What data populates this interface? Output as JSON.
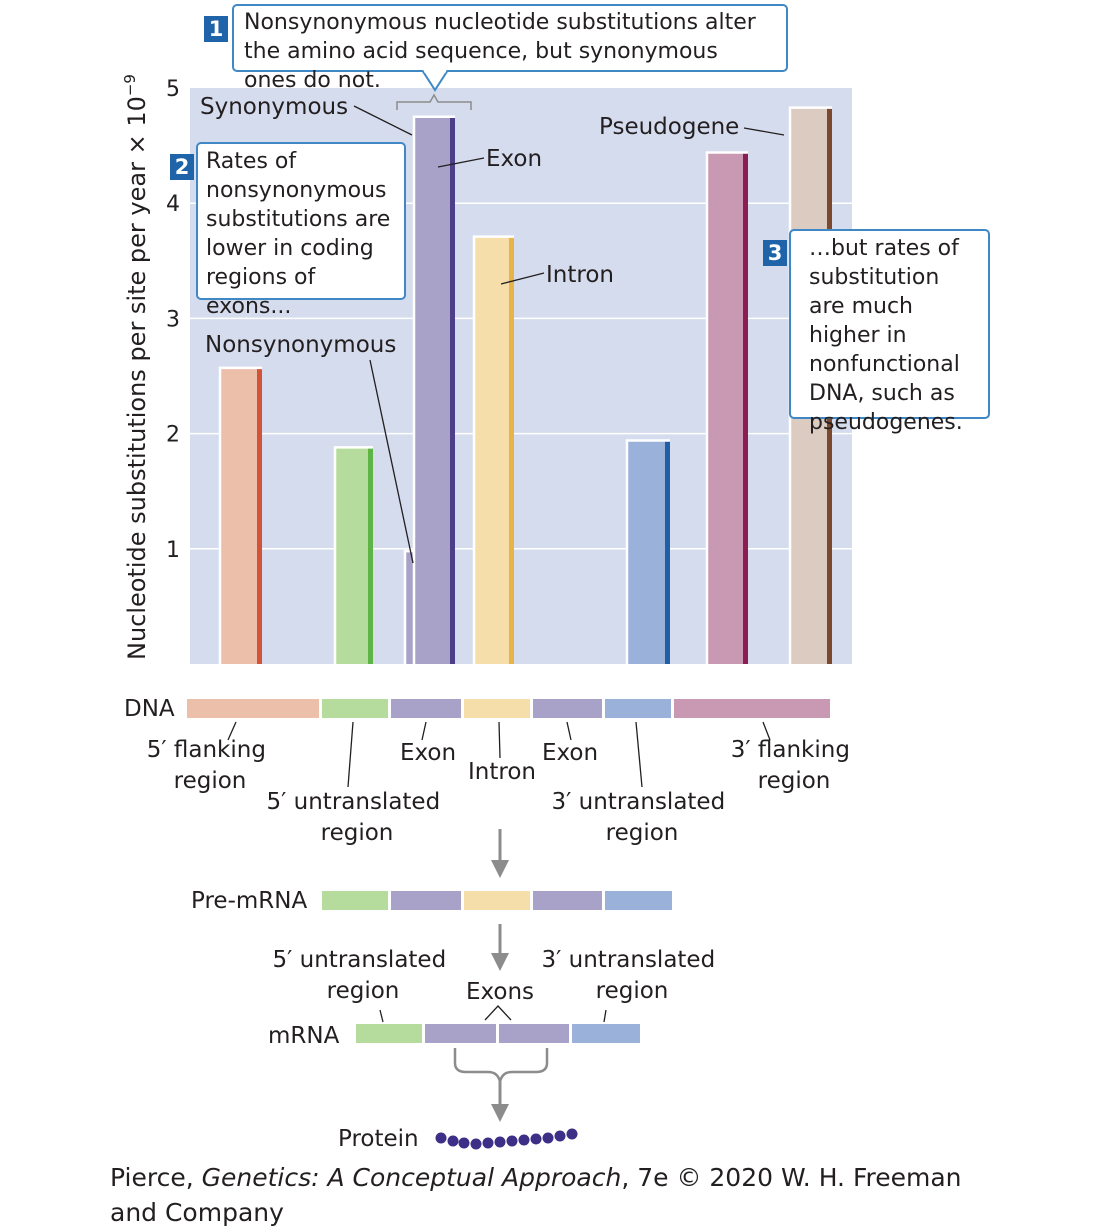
{
  "chart_data": {
    "type": "bar",
    "ylabel": "Nucleotide substitutions per site per year × 10",
    "ylabel_exp": "−9",
    "ylim": [
      0,
      5
    ],
    "yticks": [
      "1",
      "2",
      "3",
      "4",
      "5"
    ],
    "grid": true,
    "bars": [
      {
        "name": "5′ flanking region",
        "value": 2.57,
        "color": "#ebbfa9",
        "edge": "#d2533a"
      },
      {
        "name": "5′ untranslated region",
        "value": 1.88,
        "color": "#b6dc9d",
        "edge": "#5fb446"
      },
      {
        "name": "Exon nonsynonymous",
        "value": 0.98,
        "color": "#a8a2c9",
        "edge": "#4d3f8a"
      },
      {
        "name": "Exon synonymous",
        "value": 4.75,
        "color": "#a8a2c9",
        "edge": "#4d3f8a"
      },
      {
        "name": "Intron",
        "value": 3.71,
        "color": "#f6deaa",
        "edge": "#e9b447"
      },
      {
        "name": "3′ untranslated region",
        "value": 1.94,
        "color": "#9ab1da",
        "edge": "#1f5fa8"
      },
      {
        "name": "3′ flanking region",
        "value": 4.44,
        "color": "#c998b3",
        "edge": "#8b1d52"
      },
      {
        "name": "Pseudogene",
        "value": 4.83,
        "color": "#dccbc0",
        "edge": "#7b4a2e"
      }
    ],
    "annotations": {
      "synonymous": "Synonymous",
      "nonsynonymous": "Nonsynonymous",
      "exon": "Exon",
      "intron": "Intron",
      "pseudogene": "Pseudogene"
    }
  },
  "callouts": [
    {
      "num": "1",
      "text": "Nonsynonymous nucleotide substitutions alter the amino acid sequence, but synonymous ones do not."
    },
    {
      "num": "2",
      "text": "Rates of nonsynonymous substitutions are lower in coding regions of exons..."
    },
    {
      "num": "3",
      "text": "…but rates of substitution are much higher in nonfunctional DNA, such as pseudogenes."
    }
  ],
  "diagram": {
    "dna_label": "DNA",
    "dna_labels": {
      "flank5": [
        "5′ flanking",
        "region"
      ],
      "utr5": [
        "5′ untranslated",
        "region"
      ],
      "exon1": "Exon",
      "intron": "Intron",
      "exon2": "Exon",
      "utr3": [
        "3′  untranslated",
        "region"
      ],
      "flank3": [
        "3′  flanking",
        "region"
      ]
    },
    "premrna_label": "Pre-mRNA",
    "mrna_label": "mRNA",
    "mrna_labels": {
      "utr5": [
        "5′ untranslated",
        "region"
      ],
      "exons": "Exons",
      "utr3": [
        "3′  untranslated",
        "region"
      ]
    },
    "protein_label": "Protein",
    "colors": {
      "flank5": "#ebbfa9",
      "utr5": "#b6dc9d",
      "exon": "#a8a2c9",
      "intron": "#f6deaa",
      "utr3": "#9ab1da",
      "flank3": "#c998b3",
      "arrow": "#8c8c8c",
      "protein": "#3d2f87",
      "plot_bg": "#d5dcee"
    }
  },
  "caption": {
    "prefix": "Pierce, ",
    "title": "Genetics: A Conceptual Approach",
    "suffix": ", 7e © 2020 W. H. Freeman and Company"
  }
}
